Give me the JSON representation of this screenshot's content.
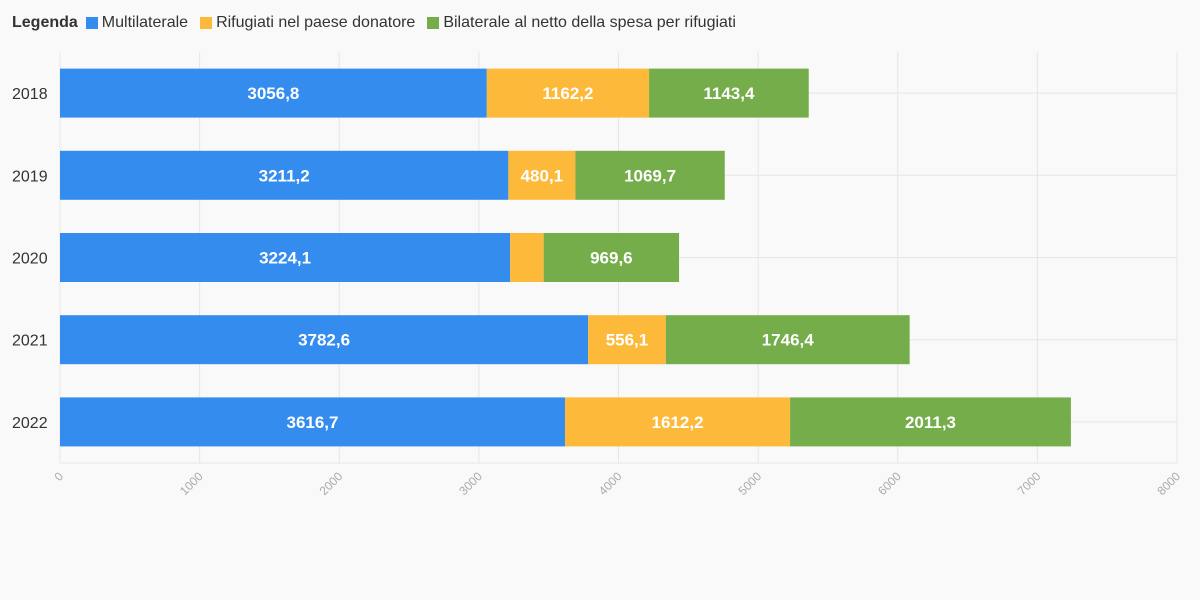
{
  "legend": {
    "title": "Legenda",
    "items": [
      {
        "label": "Multilaterale",
        "color": "#348cee"
      },
      {
        "label": "Rifugiati nel paese donatore",
        "color": "#fdb93a"
      },
      {
        "label": "Bilaterale al netto della spesa per rifugiati",
        "color": "#74ad4a"
      }
    ]
  },
  "chart_data": {
    "type": "bar",
    "orientation": "horizontal",
    "stacked": true,
    "categories": [
      "2018",
      "2019",
      "2020",
      "2021",
      "2022"
    ],
    "series": [
      {
        "name": "Multilaterale",
        "color": "#348cee",
        "values": [
          3056.8,
          3211.2,
          3224.1,
          3782.6,
          3616.7
        ],
        "labels": [
          "3056,8",
          "3211,2",
          "3224,1",
          "3782,6",
          "3616,7"
        ]
      },
      {
        "name": "Rifugiati nel paese donatore",
        "color": "#fdb93a",
        "values": [
          1162.2,
          480.1,
          240,
          556.1,
          1612.2
        ],
        "labels": [
          "1162,2",
          "480,1",
          "",
          "556,1",
          "1612,2"
        ]
      },
      {
        "name": "Bilaterale al netto della spesa per rifugiati",
        "color": "#74ad4a",
        "values": [
          1143.4,
          1069.7,
          969.6,
          1746.4,
          2011.3
        ],
        "labels": [
          "1143,4",
          "1069,7",
          "969,6",
          "1746,4",
          "2011,3"
        ]
      }
    ],
    "xlim": [
      0,
      8000
    ],
    "xticks": [
      "0",
      "1000",
      "2000",
      "3000",
      "4000",
      "5000",
      "6000",
      "7000",
      "8000"
    ],
    "grid": true,
    "legend_position": "top-left"
  }
}
